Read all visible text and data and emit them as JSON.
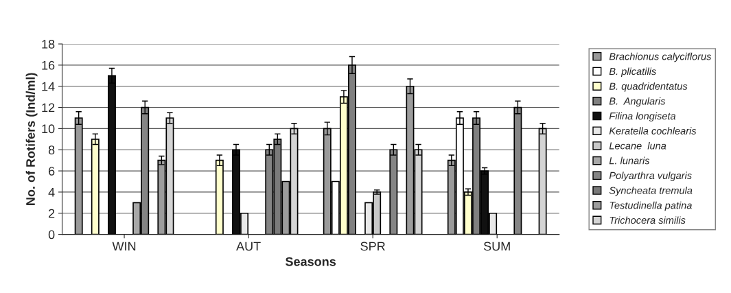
{
  "chart_data": {
    "type": "bar",
    "xlabel": "Seasons",
    "ylabel": "No. of Rotifers (Ind/ml)",
    "categories": [
      "WIN",
      "AUT",
      "SPR",
      "SUM"
    ],
    "series": [
      {
        "name": "Brachionus calyciflorus",
        "color": "#9a9a9a",
        "values": [
          11,
          null,
          10,
          7
        ],
        "errors": [
          0.6,
          null,
          0.6,
          0.5
        ]
      },
      {
        "name": "B. plicatilis",
        "color": "#ffffff",
        "values": [
          null,
          null,
          5,
          11
        ],
        "errors": [
          null,
          null,
          null,
          0.6
        ]
      },
      {
        "name": "B. quadridentatus",
        "color": "#ffffcc",
        "values": [
          9,
          7,
          13,
          4
        ],
        "errors": [
          0.5,
          0.5,
          0.6,
          0.3
        ]
      },
      {
        "name": "B.  Angularis",
        "color": "#808080",
        "values": [
          null,
          null,
          16,
          11
        ],
        "errors": [
          null,
          null,
          0.8,
          0.6
        ]
      },
      {
        "name": "Filina longiseta",
        "color": "#111111",
        "values": [
          15,
          8,
          null,
          6
        ],
        "errors": [
          0.7,
          0.5,
          null,
          0.3
        ]
      },
      {
        "name": "Keratella cochlearis",
        "color": "#e8e8e8",
        "values": [
          null,
          2,
          3,
          2
        ],
        "errors": [
          null,
          null,
          null,
          null
        ]
      },
      {
        "name": "Lecane  luna",
        "color": "#c8c8c8",
        "values": [
          null,
          null,
          4,
          null
        ],
        "errors": [
          null,
          null,
          0.2,
          null
        ]
      },
      {
        "name": "L. lunaris",
        "color": "#a8a8a8",
        "values": [
          3,
          null,
          null,
          null
        ],
        "errors": [
          null,
          null,
          null,
          null
        ]
      },
      {
        "name": "Polyarthra vulgaris",
        "color": "#858585",
        "values": [
          12,
          8,
          8,
          12
        ],
        "errors": [
          0.6,
          0.5,
          0.5,
          0.6
        ]
      },
      {
        "name": "Syncheata tremula",
        "color": "#7a7a7a",
        "values": [
          null,
          9,
          null,
          null
        ],
        "errors": [
          null,
          0.5,
          null,
          null
        ]
      },
      {
        "name": "Testudinella patina",
        "color": "#9c9c9c",
        "values": [
          7,
          5,
          14,
          null
        ],
        "errors": [
          0.4,
          null,
          0.7,
          null
        ]
      },
      {
        "name": "Trichocera similis",
        "color": "#d4d4d4",
        "values": [
          11,
          10,
          8,
          10
        ],
        "errors": [
          0.5,
          0.5,
          0.5,
          0.5
        ]
      }
    ],
    "ylim": [
      0,
      18
    ],
    "yticks": [
      0,
      2,
      4,
      6,
      8,
      10,
      12,
      14,
      16,
      18
    ],
    "grid": "y",
    "legend": "right"
  }
}
